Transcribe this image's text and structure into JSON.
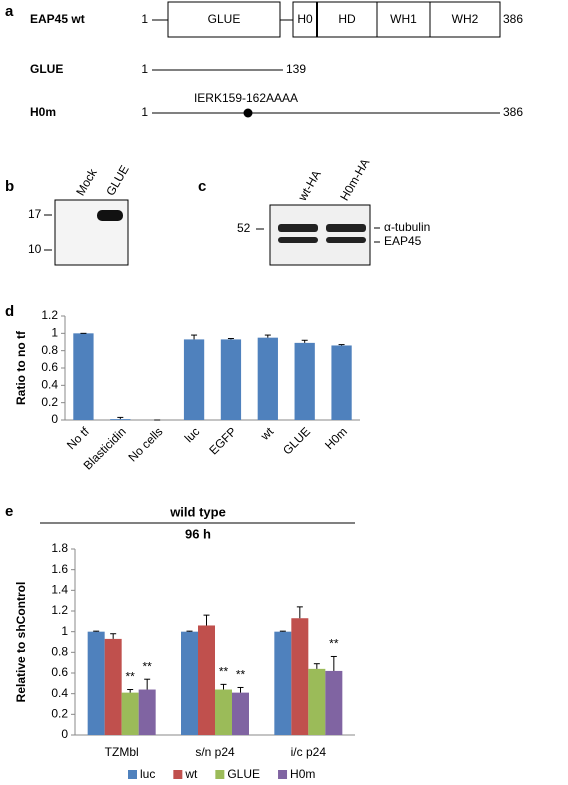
{
  "panels": {
    "a": {
      "label": "a",
      "rows": [
        {
          "name": "EAP45 wt",
          "start": "1",
          "end": "386",
          "domains": [
            "GLUE",
            "H0",
            "HD",
            "WH1",
            "WH2"
          ]
        },
        {
          "name": "GLUE",
          "start": "1",
          "end": "139"
        },
        {
          "name": "H0m",
          "start": "1",
          "end": "386",
          "mutation": "IERK159-162AAAA"
        }
      ]
    },
    "b": {
      "label": "b",
      "lanes": [
        "Mock",
        "GLUE"
      ],
      "markers": [
        "17",
        "10"
      ]
    },
    "c": {
      "label": "c",
      "lanes": [
        "wt-HA",
        "H0m-HA"
      ],
      "markers": [
        "52"
      ],
      "bands": [
        "α-tubulin",
        "EAP45"
      ]
    }
  },
  "chart_data": [
    {
      "type": "bar",
      "panel_label": "d",
      "ylabel": "Ratio to no tf",
      "categories": [
        "No tf",
        "Blasticidin",
        "No cells",
        "luc",
        "EGFP",
        "wt",
        "GLUE",
        "H0m"
      ],
      "values": [
        1,
        0.01,
        0,
        0.93,
        0.93,
        0.95,
        0.89,
        0.86
      ],
      "errors": [
        0,
        0.02,
        0,
        0.05,
        0.01,
        0.03,
        0.03,
        0.01
      ],
      "color": "#4f81bd",
      "ylim": [
        0,
        1.2
      ],
      "yticks": [
        0,
        0.2,
        0.4,
        0.6,
        0.8,
        1,
        1.2
      ]
    },
    {
      "type": "grouped_bar",
      "panel_label": "e",
      "title": "wild type",
      "subtitle": "96 h",
      "ylabel": "Relative to shControl",
      "categories": [
        "TZMbl",
        "s/n p24",
        "i/c p24"
      ],
      "series": [
        {
          "name": "luc",
          "color": "#4f81bd",
          "values": [
            1,
            1,
            1
          ],
          "errors": [
            0.005,
            0.005,
            0.005
          ]
        },
        {
          "name": "wt",
          "color": "#c0504d",
          "values": [
            0.93,
            1.06,
            1.13
          ],
          "errors": [
            0.05,
            0.1,
            0.11
          ]
        },
        {
          "name": "GLUE",
          "color": "#9bbb59",
          "values": [
            0.41,
            0.44,
            0.64
          ],
          "errors": [
            0.03,
            0.05,
            0.05
          ],
          "annotations": [
            "**",
            "**",
            null
          ]
        },
        {
          "name": "H0m",
          "color": "#8064a2",
          "values": [
            0.44,
            0.41,
            0.62
          ],
          "errors": [
            0.1,
            0.05,
            0.14
          ],
          "annotations": [
            "**",
            "**",
            "**"
          ]
        }
      ],
      "ylim": [
        0,
        1.8
      ],
      "yticks": [
        0,
        0.2,
        0.4,
        0.6,
        0.8,
        1,
        1.2,
        1.4,
        1.6,
        1.8
      ],
      "legend": "bottom"
    }
  ]
}
